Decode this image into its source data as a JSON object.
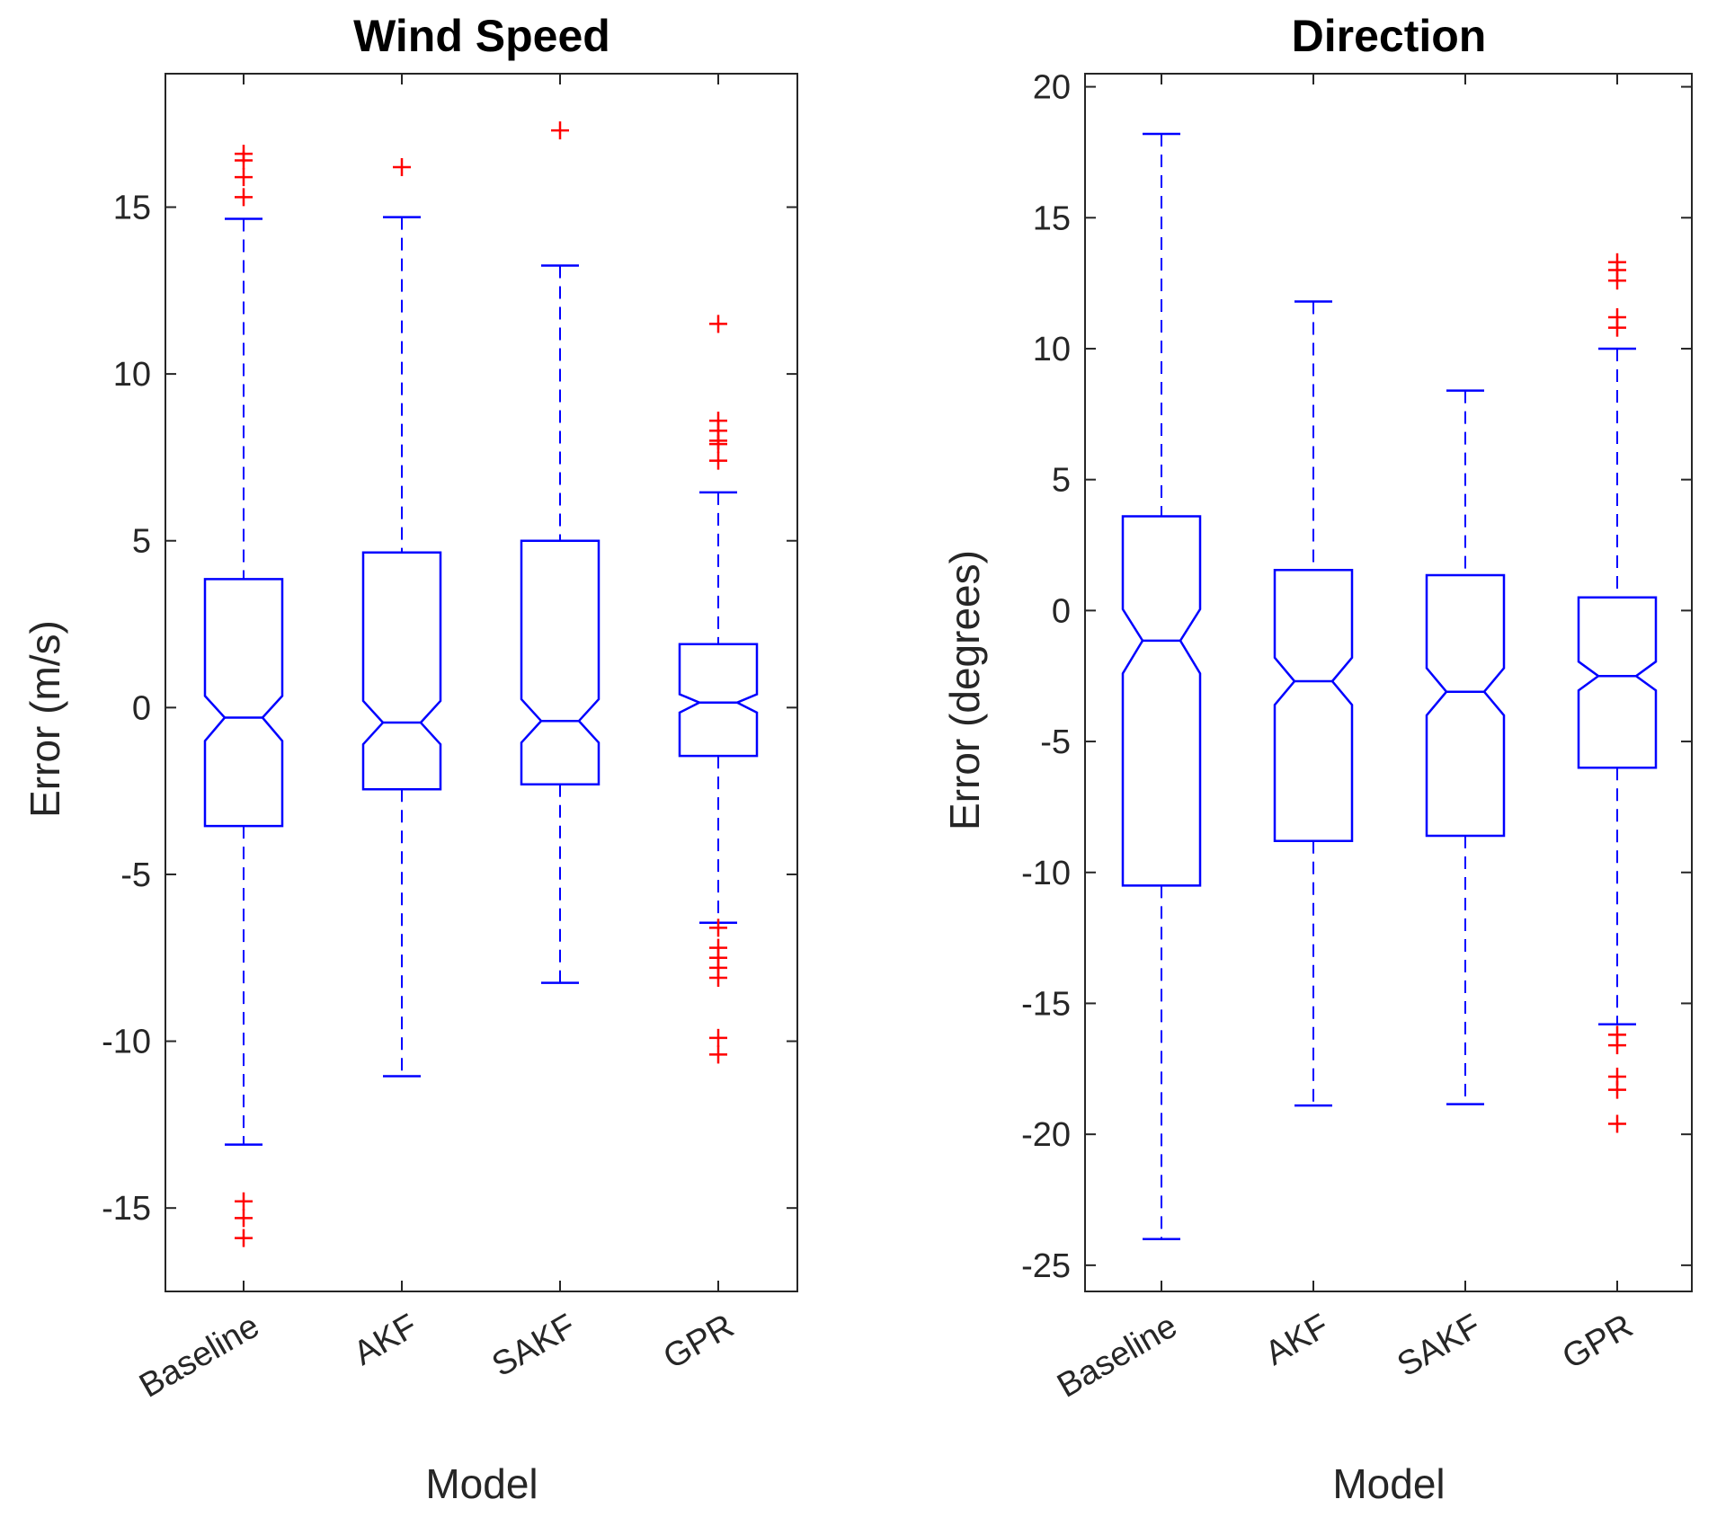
{
  "chart_data": [
    {
      "type": "boxplot",
      "title": "Wind Speed",
      "xlabel": "Model",
      "ylabel": "Error (m/s)",
      "ylim": [
        -17.5,
        19
      ],
      "yticks": [
        -15,
        -10,
        -5,
        0,
        5,
        10,
        15
      ],
      "categories": [
        "Baseline",
        "AKF",
        "SAKF",
        "GPR"
      ],
      "boxes": [
        {
          "q1": -3.55,
          "median": -0.3,
          "q3": 3.85,
          "whisker_low": -13.1,
          "whisker_high": 14.65,
          "notch_low": -1.0,
          "notch_high": 0.35,
          "outliers": [
            16.6,
            16.4,
            15.9,
            15.3,
            -14.8,
            -15.3,
            -15.9
          ]
        },
        {
          "q1": -2.45,
          "median": -0.45,
          "q3": 4.65,
          "whisker_low": -11.05,
          "whisker_high": 14.7,
          "notch_low": -1.1,
          "notch_high": 0.2,
          "outliers": [
            16.2
          ]
        },
        {
          "q1": -2.3,
          "median": -0.4,
          "q3": 5.0,
          "whisker_low": -8.25,
          "whisker_high": 13.25,
          "notch_low": -1.05,
          "notch_high": 0.25,
          "outliers": [
            17.3
          ]
        },
        {
          "q1": -1.45,
          "median": 0.15,
          "q3": 1.9,
          "whisker_low": -6.45,
          "whisker_high": 6.45,
          "notch_low": -0.15,
          "notch_high": 0.4,
          "outliers": [
            11.5,
            8.6,
            8.3,
            8.0,
            7.9,
            7.4,
            -6.6,
            -7.2,
            -7.5,
            -7.8,
            -8.1,
            -9.9,
            -10.4
          ]
        }
      ],
      "colors": {
        "box": "#0000FF",
        "outlier": "#FF0000",
        "axis": "#262626"
      }
    },
    {
      "type": "boxplot",
      "title": "Direction",
      "xlabel": "Model",
      "ylabel": "Error (degrees)",
      "ylim": [
        -26,
        20.5
      ],
      "yticks": [
        -25,
        -20,
        -15,
        -10,
        -5,
        0,
        5,
        10,
        15,
        20
      ],
      "categories": [
        "Baseline",
        "AKF",
        "SAKF",
        "GPR"
      ],
      "boxes": [
        {
          "q1": -10.5,
          "median": -1.15,
          "q3": 3.6,
          "whisker_low": -24.0,
          "whisker_high": 18.2,
          "notch_low": -2.4,
          "notch_high": 0.05,
          "outliers": []
        },
        {
          "q1": -8.8,
          "median": -2.7,
          "q3": 1.55,
          "whisker_low": -18.9,
          "whisker_high": 11.8,
          "notch_low": -3.6,
          "notch_high": -1.8,
          "outliers": []
        },
        {
          "q1": -8.6,
          "median": -3.1,
          "q3": 1.35,
          "whisker_low": -18.85,
          "whisker_high": 8.4,
          "notch_low": -4.0,
          "notch_high": -2.2,
          "outliers": []
        },
        {
          "q1": -6.0,
          "median": -2.5,
          "q3": 0.5,
          "whisker_low": -15.8,
          "whisker_high": 10.0,
          "notch_low": -3.05,
          "notch_high": -1.95,
          "outliers": [
            13.3,
            13.0,
            12.6,
            11.2,
            10.8,
            -16.2,
            -16.6,
            -17.8,
            -18.3,
            -19.6
          ]
        }
      ],
      "colors": {
        "box": "#0000FF",
        "outlier": "#FF0000",
        "axis": "#262626"
      }
    }
  ]
}
